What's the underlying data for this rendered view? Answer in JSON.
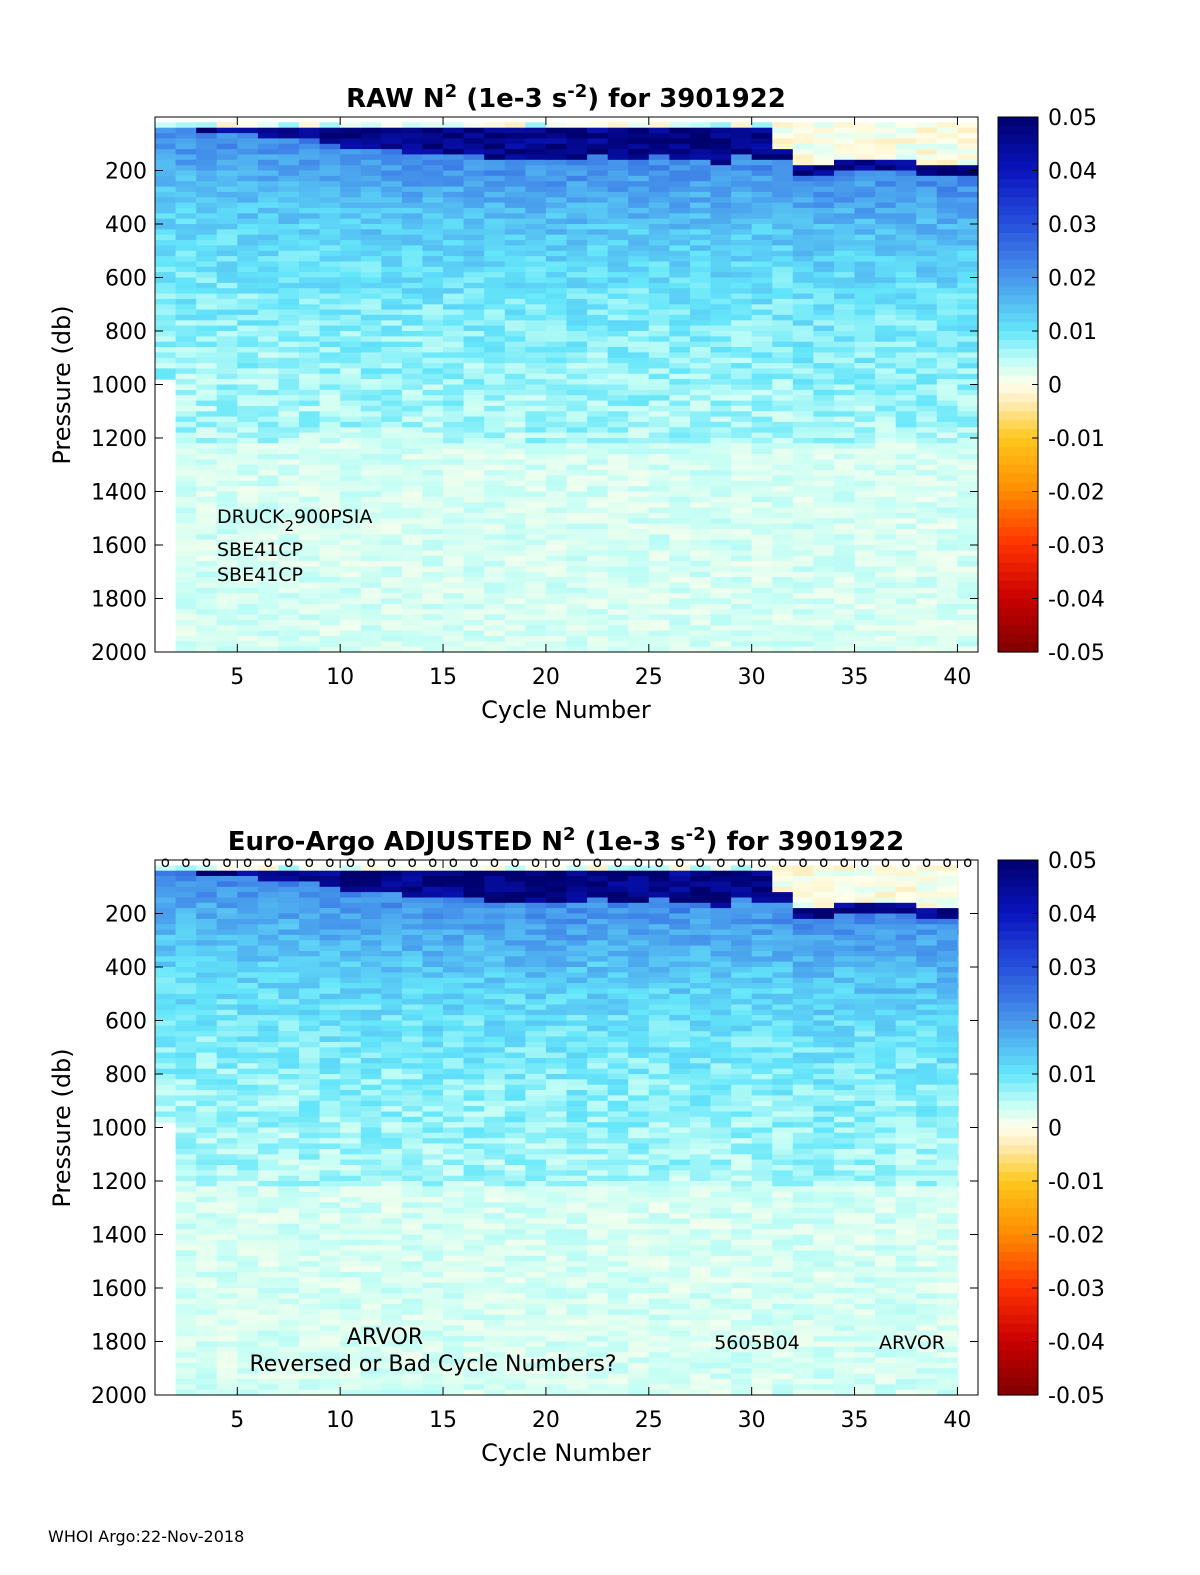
{
  "footer": "WHOI Argo:22-Nov-2018",
  "chart_data": [
    {
      "type": "heatmap",
      "title_prefix": "RAW N",
      "title_sup": "2",
      "title_mid": " (1e-3 s",
      "title_sup2": "-2",
      "title_suffix": ") for 3901922",
      "xlabel": "Cycle Number",
      "ylabel": "Pressure (db)",
      "xlim": [
        1,
        41
      ],
      "ylim": [
        2000,
        0
      ],
      "xticks": [
        5,
        10,
        15,
        20,
        25,
        30,
        35,
        40
      ],
      "yticks": [
        200,
        400,
        600,
        800,
        1000,
        1200,
        1400,
        1600,
        1800,
        2000
      ],
      "clim": [
        -0.05,
        0.05
      ],
      "colorbar_ticks": [
        "0.05",
        "0.04",
        "0.03",
        "0.02",
        "0.01",
        "0",
        "-0.01",
        "-0.02",
        "-0.03",
        "-0.04",
        "-0.05"
      ],
      "colormap": "blue-cyan-white-yellow-red",
      "cycles": [
        1,
        40
      ],
      "first_cycle_max_pressure": 970,
      "mixed_layer_base_db": [
        30,
        40,
        50,
        60,
        60,
        70,
        70,
        80,
        100,
        110,
        120,
        120,
        130,
        130,
        140,
        140,
        150,
        150,
        160,
        160,
        160,
        140,
        150,
        150,
        140,
        160,
        150,
        170,
        130,
        150,
        160,
        220,
        210,
        200,
        190,
        200,
        200,
        210,
        220,
        220
      ],
      "annotations": {
        "sensor1_pre": "DRUCK",
        "sensor1_sub": "2",
        "sensor1_post": "900PSIA",
        "sensor2": "SBE41CP",
        "sensor3": "SBE41CP"
      },
      "grid": false
    },
    {
      "type": "heatmap",
      "title_prefix": "Euro-Argo  ADJUSTED N",
      "title_sup": "2",
      "title_mid": " (1e-3 s",
      "title_sup2": "-2",
      "title_suffix": ") for 3901922",
      "xlabel": "Cycle Number",
      "ylabel": "Pressure (db)",
      "xlim": [
        1,
        41
      ],
      "ylim": [
        2000,
        0
      ],
      "xticks": [
        5,
        10,
        15,
        20,
        25,
        30,
        35,
        40
      ],
      "yticks": [
        200,
        400,
        600,
        800,
        1000,
        1200,
        1400,
        1600,
        1800,
        2000
      ],
      "clim": [
        -0.05,
        0.05
      ],
      "colorbar_ticks": [
        "0.05",
        "0.04",
        "0.03",
        "0.02",
        "0.01",
        "0",
        "-0.01",
        "-0.02",
        "-0.03",
        "-0.04",
        "-0.05"
      ],
      "colormap": "blue-cyan-white-yellow-red",
      "cycles": [
        1,
        40
      ],
      "first_cycle_max_pressure": 970,
      "markers": "o",
      "mixed_layer_base_db": [
        30,
        40,
        50,
        60,
        60,
        70,
        70,
        80,
        100,
        110,
        120,
        120,
        130,
        130,
        140,
        140,
        150,
        150,
        160,
        160,
        160,
        140,
        150,
        150,
        140,
        160,
        150,
        170,
        130,
        150,
        160,
        220,
        210,
        200,
        190,
        200,
        200,
        210,
        220,
        220
      ],
      "annotations": {
        "platform_left": "ARVOR",
        "warning": "Reversed or Bad Cycle Numbers?",
        "firmware": "5605B04",
        "platform_right": "ARVOR"
      },
      "grid": false
    }
  ]
}
